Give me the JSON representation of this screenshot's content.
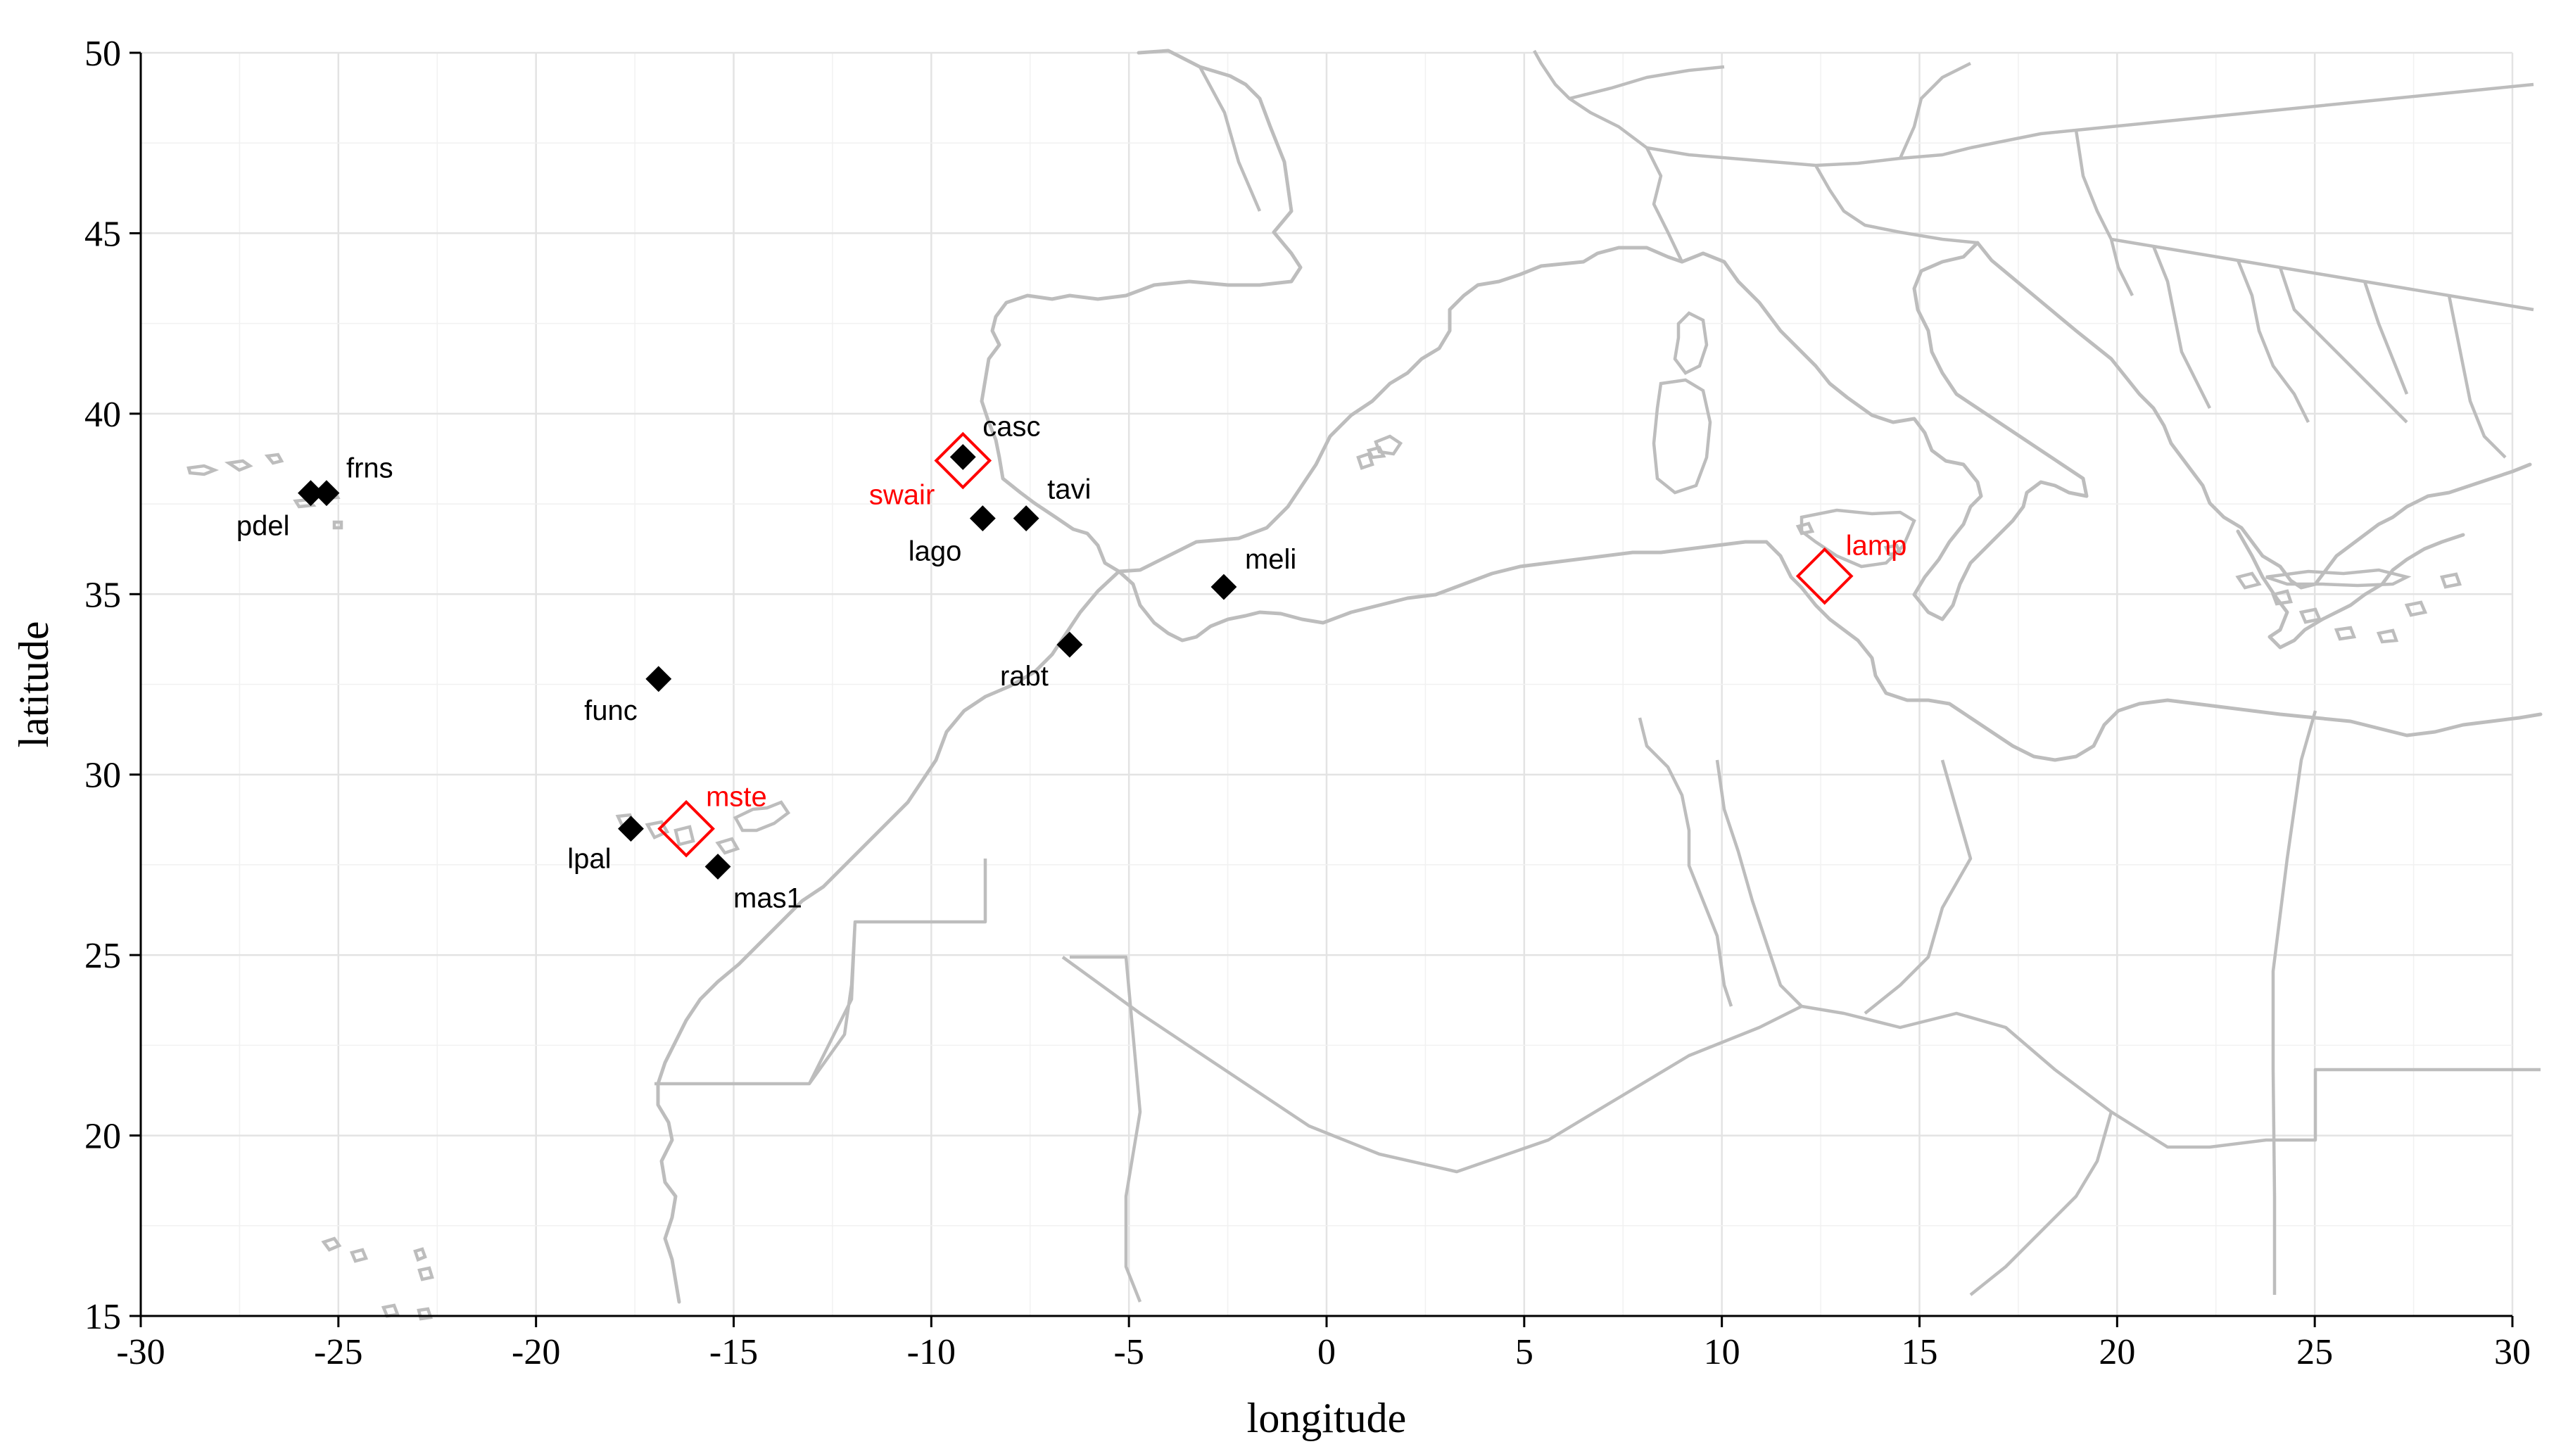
{
  "map": {
    "xlabel": "longitude",
    "ylabel": "latitude",
    "xlim": [
      -30,
      30
    ],
    "ylim": [
      15,
      50
    ],
    "x_ticks": [
      -30,
      -25,
      -20,
      -15,
      -10,
      -5,
      0,
      5,
      10,
      15,
      20,
      25,
      30
    ],
    "y_ticks": [
      15,
      20,
      25,
      30,
      35,
      40,
      45,
      50
    ],
    "grid": true,
    "basemap_color": "#bdbdbd",
    "colors": {
      "station": "#000000",
      "highlight": "#ff0000"
    },
    "stations": [
      {
        "name": "casc",
        "lon": -9.2,
        "lat": 38.8,
        "symbol": "filled-diamond"
      },
      {
        "name": "tavi",
        "lon": -7.6,
        "lat": 37.1,
        "symbol": "filled-diamond"
      },
      {
        "name": "lago",
        "lon": -8.7,
        "lat": 37.1,
        "symbol": "filled-diamond"
      },
      {
        "name": "frns",
        "lon": -25.3,
        "lat": 37.8,
        "symbol": "filled-diamond"
      },
      {
        "name": "pdel",
        "lon": -25.7,
        "lat": 37.8,
        "symbol": "filled-diamond"
      },
      {
        "name": "meli",
        "lon": -2.6,
        "lat": 35.2,
        "symbol": "filled-diamond"
      },
      {
        "name": "rabt",
        "lon": -6.5,
        "lat": 33.6,
        "symbol": "filled-diamond"
      },
      {
        "name": "func",
        "lon": -16.9,
        "lat": 32.65,
        "symbol": "filled-diamond"
      },
      {
        "name": "lpal",
        "lon": -17.6,
        "lat": 28.5,
        "symbol": "filled-diamond"
      },
      {
        "name": "mas1",
        "lon": -15.4,
        "lat": 27.45,
        "symbol": "filled-diamond"
      },
      {
        "name": "swair",
        "lon": -9.2,
        "lat": 38.7,
        "symbol": "open-diamond"
      },
      {
        "name": "mste",
        "lon": -16.2,
        "lat": 28.5,
        "symbol": "open-diamond"
      },
      {
        "name": "lamp",
        "lon": 12.6,
        "lat": 35.5,
        "symbol": "open-diamond"
      }
    ]
  }
}
